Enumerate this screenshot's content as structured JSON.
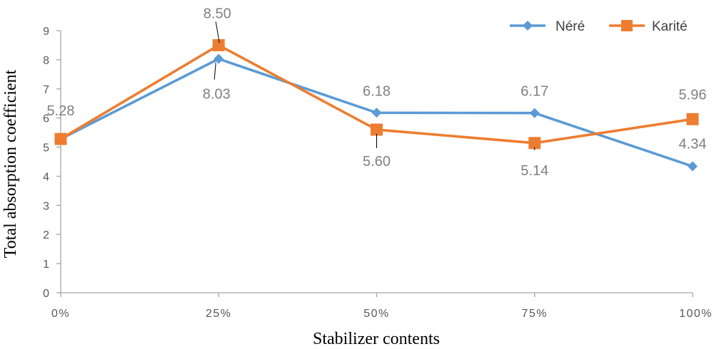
{
  "chart_data": {
    "type": "line",
    "title": "",
    "xlabel": "Stabilizer contents",
    "ylabel": "Total absorption coefficient",
    "categories": [
      "0%",
      "25%",
      "50%",
      "75%",
      "100%"
    ],
    "ylim": [
      0,
      9
    ],
    "yticks": [
      0,
      1,
      2,
      3,
      4,
      5,
      6,
      7,
      8,
      9
    ],
    "ytick_labels": [
      "0",
      "1",
      "2",
      "3",
      "4",
      "5",
      "6",
      "7",
      "8",
      "9"
    ],
    "grid": false,
    "legend_position": "top-right",
    "series": [
      {
        "name": "Néré",
        "values": [
          5.28,
          8.03,
          6.18,
          6.17,
          4.34
        ],
        "labels": [
          "5.28",
          "8.03",
          "6.18",
          "6.17",
          "4.34"
        ],
        "color": "#5B9BD5",
        "marker": "diamond"
      },
      {
        "name": "Karité",
        "values": [
          5.28,
          8.5,
          5.6,
          5.14,
          5.96
        ],
        "labels": [
          "",
          "8.50",
          "5.60",
          "5.14",
          "5.96"
        ],
        "color": "#ED7D31",
        "marker": "square"
      }
    ]
  }
}
